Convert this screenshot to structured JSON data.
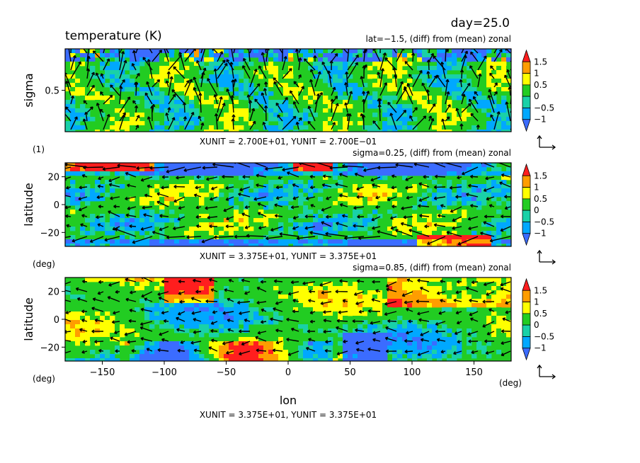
{
  "figure": {
    "day_label": "day=25.0",
    "title": "temperature (K)",
    "xlabel": "lon",
    "x_units": "(deg)",
    "colorbar": {
      "ticks": [
        "1.5",
        "1",
        "0.5",
        "0",
        "−0.5",
        "−1"
      ],
      "levels": [
        -1.5,
        -1,
        -0.5,
        0,
        0.5,
        1,
        1.5
      ],
      "colors": [
        "#3b6cff",
        "#00a8ff",
        "#19d1a8",
        "#22cc22",
        "#ffff00",
        "#ff9d00",
        "#ff1e1e"
      ]
    },
    "vector_ref_icon": "unit-vector-arrows-icon"
  },
  "chart_data": [
    {
      "type": "heatmap",
      "subtitle": "lat=−1.5, (diff) from (mean) zonal",
      "xlabel": "",
      "ylabel": "sigma",
      "y_units": "(1)",
      "yticks": [
        "0.5"
      ],
      "ytick_values": [
        0.5
      ],
      "xticks": [],
      "xlim": [
        -180,
        180
      ],
      "ylim": [
        0,
        1
      ],
      "unit_note": "XUNIT = 2.700E+01, YUNIT = 2.700E−01",
      "overlay": "wind vectors"
    },
    {
      "type": "heatmap",
      "subtitle": "sigma=0.25, (diff) from (mean) zonal",
      "xlabel": "",
      "ylabel": "latitude",
      "y_units": "(deg)",
      "yticks": [
        "20",
        "0",
        "−20"
      ],
      "ytick_values": [
        20,
        0,
        -20
      ],
      "xticks": [],
      "xlim": [
        -180,
        180
      ],
      "ylim": [
        -30,
        30
      ],
      "unit_note": "XUNIT = 3.375E+01, YUNIT = 3.375E+01",
      "overlay": "wind vectors"
    },
    {
      "type": "heatmap",
      "subtitle": "sigma=0.85, (diff) from (mean) zonal",
      "xlabel": "lon",
      "ylabel": "latitude",
      "y_units": "(deg)",
      "yticks": [
        "20",
        "0",
        "−20"
      ],
      "ytick_values": [
        20,
        0,
        -20
      ],
      "xticks": [
        "−150",
        "−100",
        "−50",
        "0",
        "50",
        "100",
        "150"
      ],
      "xtick_values": [
        -150,
        -100,
        -50,
        0,
        50,
        100,
        150
      ],
      "xlim": [
        -180,
        180
      ],
      "ylim": [
        -30,
        30
      ],
      "unit_note": "XUNIT = 3.375E+01, YUNIT = 3.375E+01",
      "overlay": "wind vectors"
    }
  ]
}
